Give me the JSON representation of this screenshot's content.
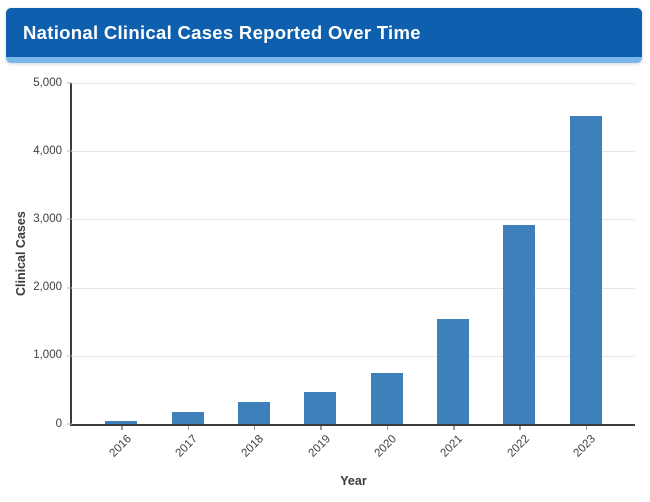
{
  "header": {
    "title": "National Clinical Cases Reported Over Time"
  },
  "chart_data": {
    "type": "bar",
    "title": "National Clinical Cases Reported Over Time",
    "categories": [
      "2016",
      "2017",
      "2018",
      "2019",
      "2020",
      "2021",
      "2022",
      "2023"
    ],
    "values": [
      50,
      170,
      330,
      475,
      755,
      1540,
      2920,
      4515
    ],
    "xlabel": "Year",
    "ylabel": "Clinical Cases",
    "ylim": [
      0,
      5000
    ],
    "ytick_labels": [
      "0",
      "1,000",
      "2,000",
      "3,000",
      "4,000",
      "5,000"
    ],
    "grid": "horizontal",
    "legend": "none"
  },
  "colors": {
    "banner_bg": "#0e5fad",
    "banner_underline": "#79b8e8",
    "bar": "#3d80ba",
    "axis": "#3b3b3b",
    "gridline": "#e7e7e7",
    "tick_text": "#3f3f3f"
  }
}
